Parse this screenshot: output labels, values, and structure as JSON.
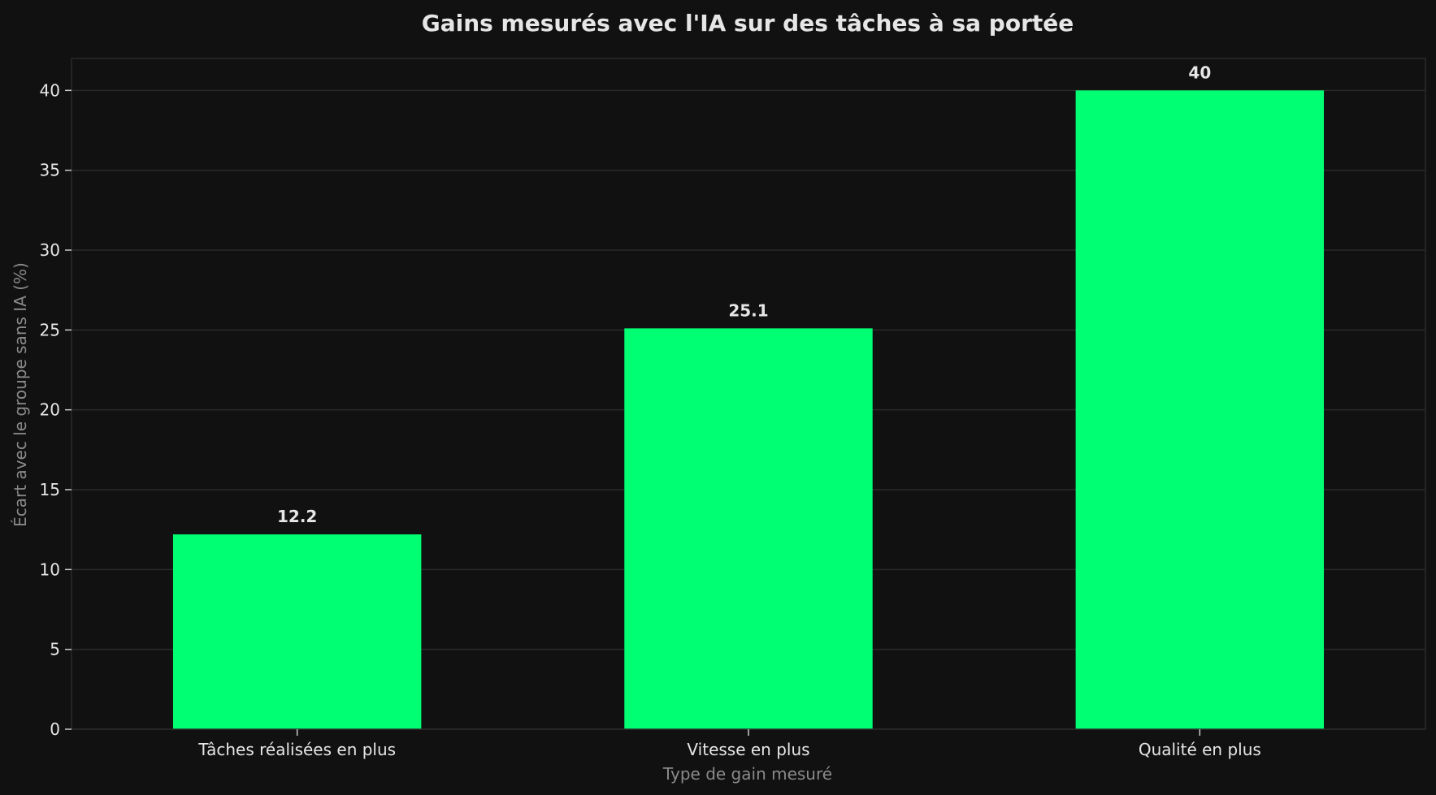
{
  "chart_data": {
    "type": "bar",
    "title": "Gains mesurés avec l'IA sur des tâches à sa portée",
    "xlabel": "Type de gain mesuré",
    "ylabel": "Écart avec le groupe sans IA (%)",
    "categories": [
      "Tâches réalisées en plus",
      "Vitesse en plus",
      "Qualité en plus"
    ],
    "values": [
      12.2,
      25.1,
      40
    ],
    "value_labels": [
      "12.2",
      "25.1",
      "40"
    ],
    "ylim": [
      0,
      42
    ],
    "yticks": [
      0,
      5,
      10,
      15,
      20,
      25,
      30,
      35,
      40
    ],
    "grid": true,
    "colors": {
      "background": "#111111",
      "bar": "#00ff73",
      "grid": "#2a2a2a",
      "text": "#e6e6e6",
      "axis_label": "#8a8a8a"
    }
  }
}
